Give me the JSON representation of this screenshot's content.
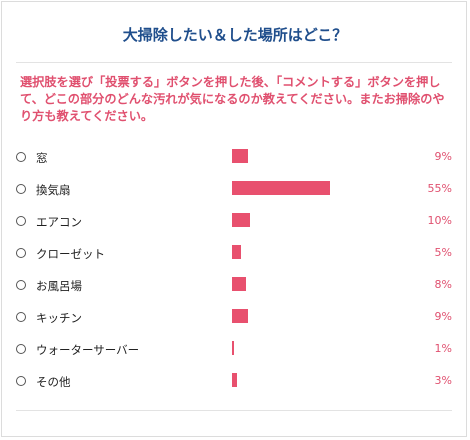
{
  "poll": {
    "title": "大掃除したい＆した場所はどこ？",
    "instructions": "選択肢を選び「投票する」ボタンを押した後、「コメントする」ボタンを押して、どこの部分のどんな汚れが気になるのか教えてください。またお掃除のやり方も教えてください。",
    "accent_color": "#e8506e",
    "title_color": "#1f4e8c",
    "options": [
      {
        "label": "窓",
        "percent": 9,
        "percent_text": "9%"
      },
      {
        "label": "換気扇",
        "percent": 55,
        "percent_text": "55%"
      },
      {
        "label": "エアコン",
        "percent": 10,
        "percent_text": "10%"
      },
      {
        "label": "クローゼット",
        "percent": 5,
        "percent_text": "5%"
      },
      {
        "label": "お風呂場",
        "percent": 8,
        "percent_text": "8%"
      },
      {
        "label": "キッチン",
        "percent": 9,
        "percent_text": "9%"
      },
      {
        "label": "ウォーターサーバー",
        "percent": 1,
        "percent_text": "1%"
      },
      {
        "label": "その他",
        "percent": 3,
        "percent_text": "3%"
      }
    ]
  }
}
